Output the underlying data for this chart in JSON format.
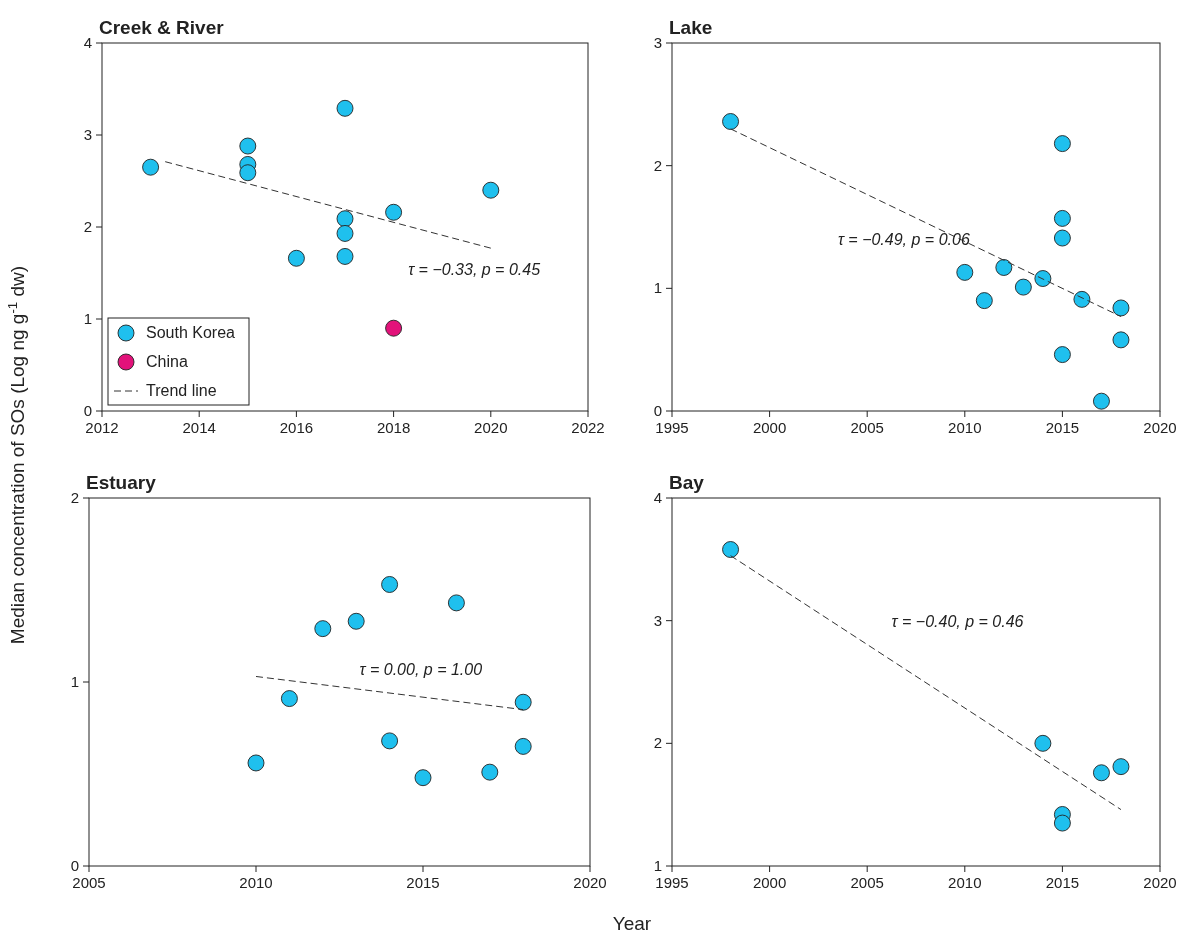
{
  "chart_data": [
    {
      "type": "scatter",
      "title": "Creek & River",
      "ylabel": "Median concentration of SOs (Log ng g$^{-1}$ dw)",
      "xlim": [
        2012,
        2022
      ],
      "xticks": [
        2012,
        2014,
        2016,
        2018,
        2020,
        2022
      ],
      "ylim": [
        0,
        4
      ],
      "yticks": [
        0,
        1,
        2,
        3,
        4
      ],
      "marker": "circle",
      "legend": "bottom left",
      "annotations": [
        "τ = −0.33, p = 0.45"
      ],
      "series": [
        {
          "name": "South Korea",
          "color": "#1fc0ee",
          "x": [
            2013,
            2015,
            2015,
            2015,
            2016,
            2017,
            2017,
            2017,
            2017,
            2018,
            2020
          ],
          "values": [
            2.65,
            2.88,
            2.68,
            2.59,
            1.66,
            3.29,
            2.09,
            1.93,
            1.68,
            2.16,
            2.4
          ]
        },
        {
          "name": "China",
          "color": "#e2127a",
          "x": [
            2018
          ],
          "values": [
            0.9
          ]
        },
        {
          "name": "Trend line",
          "type": "line",
          "marker": "none",
          "line_style": "dashed",
          "color": "#333333",
          "x": [
            2013.3,
            2020
          ],
          "values": [
            2.71,
            1.77
          ]
        }
      ]
    },
    {
      "type": "scatter",
      "title": "Lake",
      "xlim": [
        1995,
        2020
      ],
      "xticks": [
        1995,
        2000,
        2005,
        2010,
        2015,
        2020
      ],
      "ylim": [
        0,
        3
      ],
      "yticks": [
        0,
        1,
        2,
        3
      ],
      "marker": "circle",
      "annotations": [
        "τ = −0.49, p = 0.06"
      ],
      "series": [
        {
          "color": "#1fc0ee",
          "x": [
            1998,
            2010,
            2011,
            2012,
            2013,
            2014,
            2015,
            2015,
            2015,
            2015,
            2016,
            2017,
            2018,
            2018
          ],
          "values": [
            2.36,
            1.13,
            0.9,
            1.17,
            1.01,
            1.08,
            2.18,
            1.57,
            1.41,
            0.46,
            0.91,
            0.08,
            0.84,
            0.58
          ]
        },
        {
          "type": "line",
          "marker": "none",
          "line_style": "dashed",
          "color": "#333333",
          "x": [
            1998,
            2018
          ],
          "values": [
            2.3,
            0.77
          ]
        }
      ]
    },
    {
      "type": "scatter",
      "title": "Estuary",
      "xlabel": "Year",
      "xlim": [
        2005,
        2020
      ],
      "xticks": [
        2005,
        2010,
        2015,
        2020
      ],
      "ylim": [
        0,
        2
      ],
      "yticks": [
        0,
        1,
        2
      ],
      "marker": "circle",
      "annotations": [
        "τ = 0.00, p = 1.00"
      ],
      "series": [
        {
          "color": "#1fc0ee",
          "x": [
            2010,
            2011,
            2012,
            2013,
            2014,
            2014,
            2015,
            2016,
            2017,
            2018,
            2018
          ],
          "values": [
            0.56,
            0.91,
            1.29,
            1.33,
            1.53,
            0.68,
            0.48,
            1.43,
            0.51,
            0.89,
            0.65
          ]
        },
        {
          "type": "line",
          "marker": "none",
          "line_style": "dashed",
          "color": "#333333",
          "x": [
            2010,
            2018
          ],
          "values": [
            1.03,
            0.85
          ]
        }
      ]
    },
    {
      "type": "scatter",
      "title": "Bay",
      "xlim": [
        1995,
        2020
      ],
      "xticks": [
        1995,
        2000,
        2005,
        2010,
        2015,
        2020
      ],
      "ylim": [
        1,
        4
      ],
      "yticks": [
        1,
        2,
        3,
        4
      ],
      "marker": "circle",
      "annotations": [
        "τ = −0.40, p = 0.46"
      ],
      "series": [
        {
          "color": "#1fc0ee",
          "x": [
            1998,
            2014,
            2015,
            2015,
            2017,
            2018
          ],
          "values": [
            3.58,
            2.0,
            1.42,
            1.35,
            1.76,
            1.81
          ]
        },
        {
          "type": "line",
          "marker": "none",
          "line_style": "dashed",
          "color": "#333333",
          "x": [
            1998,
            2018
          ],
          "values": [
            3.53,
            1.46
          ]
        }
      ]
    }
  ]
}
